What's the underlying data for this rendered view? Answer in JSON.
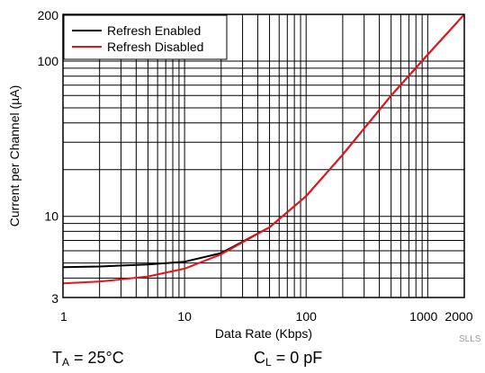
{
  "chart_data": {
    "type": "line",
    "xlabel": "Data Rate (Kbps)",
    "ylabel": "Current per Channel (µA)",
    "xscale": "log",
    "yscale": "log",
    "xlim": [
      1,
      2000
    ],
    "ylim": [
      3,
      200
    ],
    "grid": true,
    "legend_position": "top-left",
    "x_ticks": [
      1,
      10,
      100,
      1000,
      2000
    ],
    "x_tick_labels": [
      "1",
      "10",
      "100",
      "1000",
      "2000"
    ],
    "y_ticks": [
      3,
      10,
      100,
      200
    ],
    "y_tick_labels": [
      "3",
      "10",
      "100",
      "200"
    ],
    "series": [
      {
        "name": "Refresh Enabled",
        "color": "#000000",
        "x": [
          1,
          2,
          5,
          10,
          20,
          50,
          100,
          200,
          500,
          1000,
          2000
        ],
        "y": [
          4.7,
          4.75,
          4.9,
          5.1,
          5.8,
          8.5,
          13.5,
          25,
          60,
          110,
          200
        ]
      },
      {
        "name": "Refresh Disabled",
        "color": "#e8141b",
        "x": [
          1,
          2,
          5,
          10,
          20,
          50,
          100,
          200,
          500,
          1000,
          2000
        ],
        "y": [
          3.7,
          3.8,
          4.1,
          4.6,
          5.7,
          8.5,
          13.5,
          25,
          60,
          110,
          200
        ]
      }
    ]
  },
  "conditions": {
    "ta_symbol": "T",
    "ta_sub": "A",
    "ta_value": " = 25°C",
    "cl_symbol": "C",
    "cl_sub": "L",
    "cl_value": " = 0 pF"
  },
  "doc_code": "SLLS"
}
